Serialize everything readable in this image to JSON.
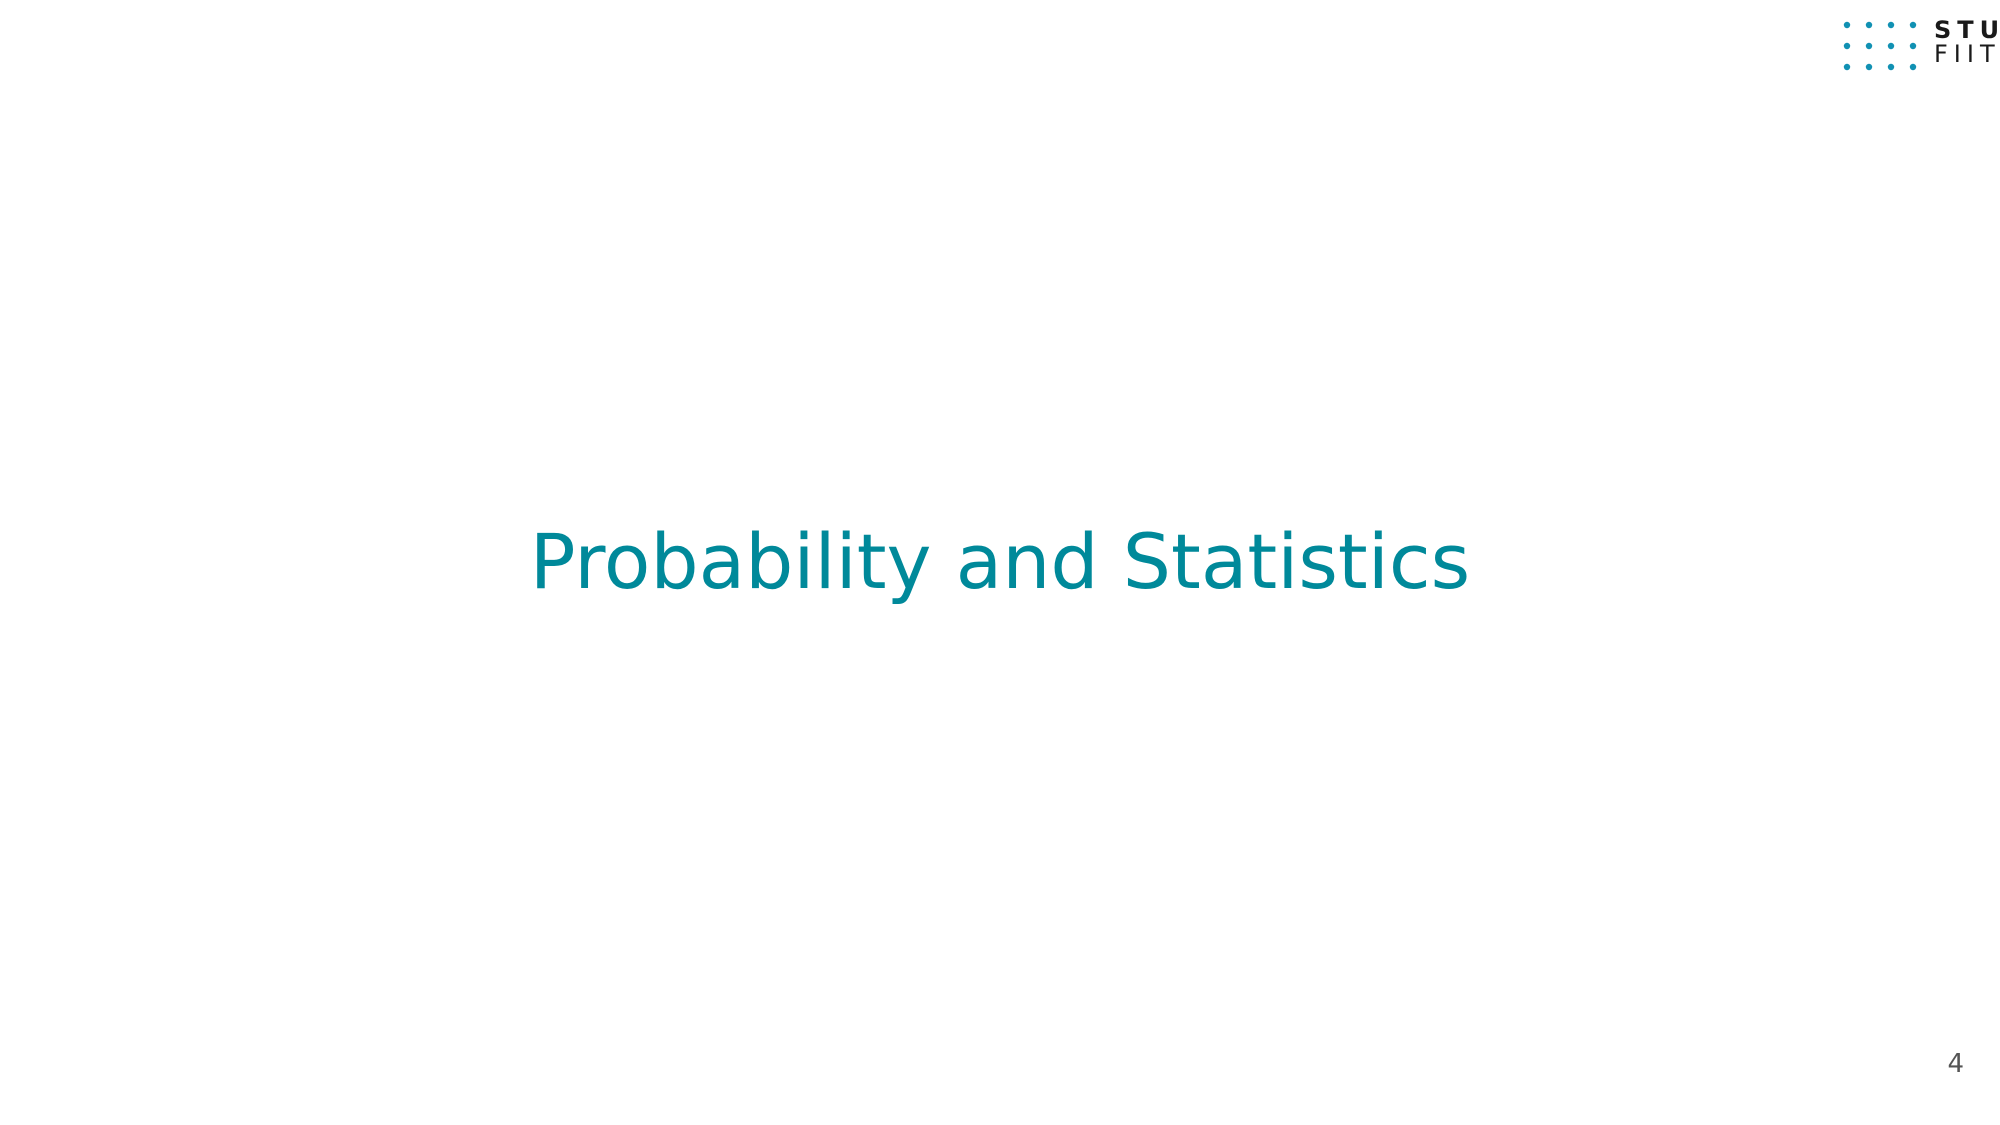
{
  "slide": {
    "title": "Probability and Statistics",
    "page_number": "4"
  },
  "logo": {
    "line1": "STU",
    "line2": "FIIT",
    "dot_color": "#1191b3",
    "text_color": "#1a1a1a"
  },
  "colors": {
    "title": "#00899a",
    "background": "#ffffff"
  }
}
